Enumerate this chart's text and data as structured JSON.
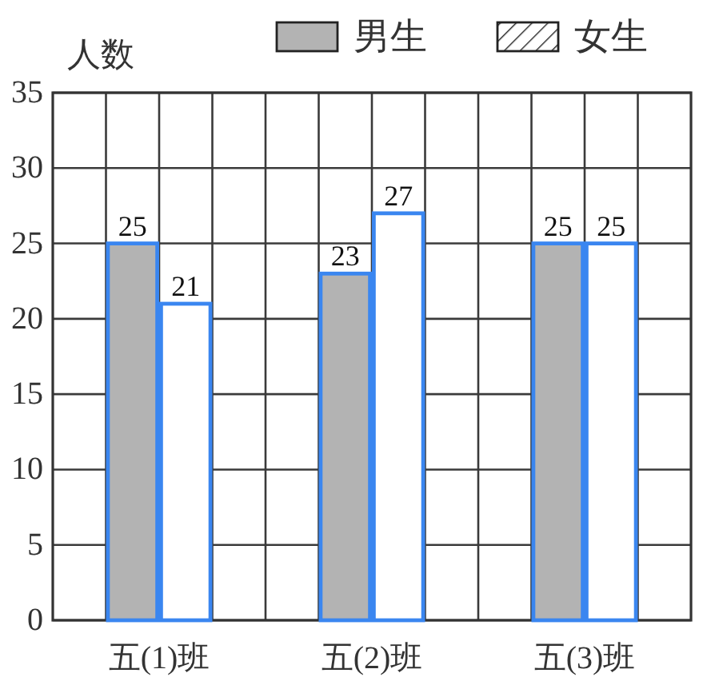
{
  "chart_data": {
    "type": "bar",
    "ylabel": "人数",
    "categories": [
      "五(1)班",
      "五(2)班",
      "五(3)班"
    ],
    "series": [
      {
        "name": "男生",
        "color": "#b3b3b3",
        "values": [
          25,
          23,
          25
        ]
      },
      {
        "name": "女生",
        "color": "#ffffff",
        "values": [
          21,
          27,
          25
        ]
      }
    ],
    "ylim": [
      0,
      35
    ],
    "yticks": [
      0,
      5,
      10,
      15,
      20,
      25,
      30,
      35
    ],
    "grid": true,
    "legend": "top right",
    "data_labels": true
  }
}
